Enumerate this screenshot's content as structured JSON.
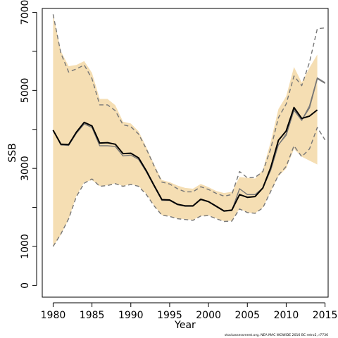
{
  "chart_data": {
    "type": "line",
    "title": "",
    "xlabel": "Year",
    "ylabel": "SSB",
    "xlim": [
      1978.6,
      2015.4
    ],
    "ylim": [
      -300,
      7100
    ],
    "x_ticks": [
      "1980",
      "1985",
      "1990",
      "1995",
      "2000",
      "2005",
      "2010",
      "2015"
    ],
    "y_ticks": [
      "0",
      "1000",
      "3000",
      "5000",
      "7000"
    ],
    "y_minor_ticks": [
      2000,
      4000,
      6000
    ],
    "grid": false,
    "legend": "none",
    "footnote": "stockassessment.org, NEA MAC WGWIDE 2016 BC retro2, r7736",
    "colors": {
      "band": "#f5deb3",
      "estimate": "#000000",
      "retro": "#777777",
      "retro_ci": "#777777"
    },
    "confidence_band": {
      "x": [
        1980,
        1981,
        1982,
        1983,
        1984,
        1985,
        1986,
        1987,
        1988,
        1989,
        1990,
        1991,
        1992,
        1993,
        1994,
        1995,
        1996,
        1997,
        1998,
        1999,
        2000,
        2001,
        2002,
        2003,
        2004,
        2005,
        2006,
        2007,
        2008,
        2009,
        2010,
        2011,
        2012,
        2013,
        2014
      ],
      "lower": [
        1000,
        1300,
        1700,
        2300,
        2650,
        2700,
        2550,
        2570,
        2620,
        2550,
        2600,
        2550,
        2350,
        2050,
        1800,
        1780,
        1720,
        1700,
        1680,
        1780,
        1800,
        1720,
        1650,
        1660,
        1970,
        1870,
        1850,
        2000,
        2400,
        2800,
        3000,
        3500,
        3300,
        3200,
        3100
      ],
      "upper": [
        6950,
        6000,
        5620,
        5650,
        5750,
        5450,
        4780,
        4780,
        4620,
        4200,
        4150,
        3950,
        3550,
        3100,
        2700,
        2650,
        2560,
        2500,
        2480,
        2600,
        2520,
        2420,
        2370,
        2400,
        2780,
        2760,
        2740,
        2960,
        3680,
        4520,
        4850,
        5600,
        5200,
        5580,
        5920
      ]
    },
    "series": [
      {
        "role": "estimate",
        "x": [
          1980,
          1981,
          1982,
          1983,
          1984,
          1985,
          1986,
          1987,
          1988,
          1989,
          1990,
          1991,
          1992,
          1993,
          1994,
          1995,
          1996,
          1997,
          1998,
          1999,
          2000,
          2001,
          2002,
          2003,
          2004,
          2005,
          2006,
          2007,
          2008,
          2009,
          2010,
          2011,
          2012,
          2013,
          2014
        ],
        "values": [
          3980,
          3620,
          3610,
          3930,
          4180,
          4090,
          3650,
          3660,
          3620,
          3380,
          3390,
          3270,
          2940,
          2560,
          2200,
          2190,
          2080,
          2040,
          2040,
          2210,
          2150,
          2030,
          1910,
          1930,
          2330,
          2260,
          2280,
          2500,
          3020,
          3720,
          3960,
          4560,
          4280,
          4340,
          4500
        ]
      },
      {
        "role": "retro",
        "x": [
          2009,
          2010,
          2011,
          2012,
          2013,
          2014,
          2015
        ],
        "values": [
          3600,
          3880,
          4540,
          4240,
          4550,
          5300,
          5180
        ]
      },
      {
        "role": "retro_ci_upper",
        "x": [
          1980,
          1981,
          1982,
          1983,
          1984,
          1985,
          1986,
          1987,
          1988,
          1989,
          1990,
          1991,
          1992,
          1993,
          1994,
          1995,
          1996,
          1997,
          1998,
          1999,
          2000,
          2001,
          2002,
          2003,
          2004,
          2005,
          2006,
          2007,
          2008,
          2009,
          2010,
          2011,
          2012,
          2013,
          2014,
          2015
        ],
        "values": [
          6950,
          5950,
          5470,
          5550,
          5650,
          5300,
          4630,
          4630,
          4480,
          4120,
          4070,
          3880,
          3500,
          3060,
          2650,
          2600,
          2480,
          2400,
          2400,
          2530,
          2460,
          2360,
          2290,
          2330,
          2920,
          2760,
          2770,
          2920,
          3500,
          4300,
          4650,
          5370,
          5120,
          5720,
          6580,
          6600
        ]
      },
      {
        "role": "retro_ci_lower",
        "x": [
          1980,
          1981,
          1982,
          1983,
          1984,
          1985,
          1986,
          1987,
          1988,
          1989,
          1990,
          1991,
          1992,
          1993,
          1994,
          1995,
          1996,
          1997,
          1998,
          1999,
          2000,
          2001,
          2002,
          2003,
          2004,
          2005,
          2006,
          2007,
          2008,
          2009,
          2010,
          2011,
          2012,
          2013,
          2014,
          2015
        ],
        "values": [
          1000,
          1320,
          1710,
          2280,
          2620,
          2730,
          2540,
          2560,
          2610,
          2540,
          2590,
          2540,
          2330,
          2040,
          1800,
          1770,
          1710,
          1690,
          1670,
          1780,
          1790,
          1710,
          1640,
          1650,
          1960,
          1870,
          1850,
          1990,
          2410,
          2830,
          3050,
          3580,
          3300,
          3500,
          4050,
          3730
        ]
      },
      {
        "role": "retro",
        "x": [
          1980,
          1981,
          1982,
          1983,
          1984,
          1985,
          1986,
          1987,
          1988,
          1989,
          1990,
          1991,
          1992,
          1993,
          1994,
          1995,
          1996,
          1997,
          1998,
          1999,
          2000,
          2001,
          2002,
          2003,
          2004,
          2005,
          2006,
          2007,
          2008,
          2009,
          2010,
          2011,
          2012,
          2013,
          2014,
          2015
        ],
        "values": [
          3980,
          3600,
          3590,
          3900,
          4140,
          4050,
          3580,
          3580,
          3560,
          3320,
          3340,
          3230,
          2910,
          2540,
          2180,
          2180,
          2070,
          2030,
          2030,
          2200,
          2140,
          2020,
          1900,
          1920,
          2480,
          2330,
          2330,
          2500,
          2950,
          3610,
          3850,
          4490,
          4230,
          4600,
          5320,
          5200
        ]
      }
    ]
  }
}
